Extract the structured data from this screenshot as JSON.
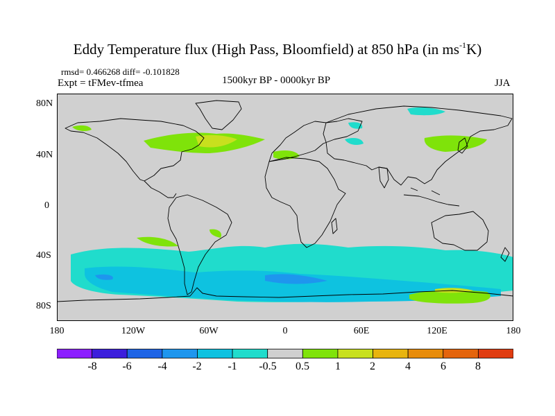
{
  "title": {
    "main": "Eddy Temperature flux (High Pass, Bloomfield) at 850 hPa (in ms",
    "sup": "-1",
    "unit_tail": "K)"
  },
  "stats": "rmsd= 0.466268 diff= -0.101828",
  "experiment": "Expt = tFMev-tfmea",
  "period": "1500kyr BP - 0000kyr BP",
  "season": "JJA",
  "lat_ticks": [
    "80N",
    "40N",
    "0",
    "40S",
    "80S"
  ],
  "lon_ticks": [
    "180",
    "120W",
    "60W",
    "0",
    "60E",
    "120E",
    "180"
  ],
  "colorbar": {
    "colors": [
      "#8c1eff",
      "#3c1edc",
      "#1e64e6",
      "#1e96ee",
      "#0ec2e0",
      "#20dccc",
      "#d0d0d0",
      "#7fe30a",
      "#c8e01e",
      "#e8b40e",
      "#e88c0a",
      "#e4640c",
      "#e03c10"
    ],
    "labels": [
      "-8",
      "-6",
      "-4",
      "-2",
      "-1",
      "-0.5",
      "0.5",
      "1",
      "2",
      "4",
      "6",
      "8"
    ]
  }
}
